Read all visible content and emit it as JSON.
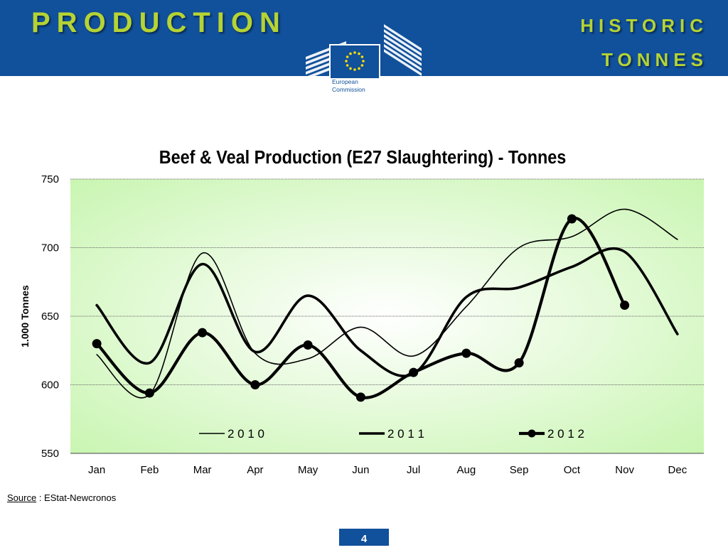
{
  "header": {
    "title": "PRODUCTION",
    "subtitle_line1": "HISTORIC",
    "subtitle_line2": "TONNES",
    "logo_text_line1": "European",
    "logo_text_line2": "Commission"
  },
  "colors": {
    "header_bg": "#11509a",
    "title_color": "#b5d334",
    "plot_bg_center": "#ffffff",
    "plot_bg_edge": "#c8f5b0"
  },
  "chart_data": {
    "type": "line",
    "title": "Beef & Veal Production (E27 Slaughtering) - Tonnes",
    "xlabel": "",
    "ylabel": "1.000 Tonnes",
    "ylim": [
      550,
      750
    ],
    "yticks": [
      "550",
      "600",
      "650",
      "700",
      "750"
    ],
    "categories": [
      "Jan",
      "Feb",
      "Mar",
      "Apr",
      "May",
      "Jun",
      "Jul",
      "Aug",
      "Sep",
      "Oct",
      "Nov",
      "Dec"
    ],
    "grid": true,
    "legend_position": "bottom-inside",
    "series": [
      {
        "name": "2 0 1 0",
        "style": "thin",
        "values": [
          622,
          593,
          696,
          623,
          619,
          642,
          621,
          657,
          700,
          708,
          728,
          706
        ]
      },
      {
        "name": "2 0 1 1",
        "style": "thick",
        "values": [
          658,
          616,
          688,
          624,
          665,
          625,
          608,
          664,
          671,
          686,
          697,
          637
        ]
      },
      {
        "name": "2 0 1 2",
        "style": "thick-markers",
        "values": [
          630,
          594,
          638,
          600,
          629,
          591,
          609,
          623,
          616,
          721,
          658,
          null
        ]
      }
    ]
  },
  "footer": {
    "source_label": "Source",
    "source_text": " : EStat-Newcronos",
    "page_number": "4"
  }
}
